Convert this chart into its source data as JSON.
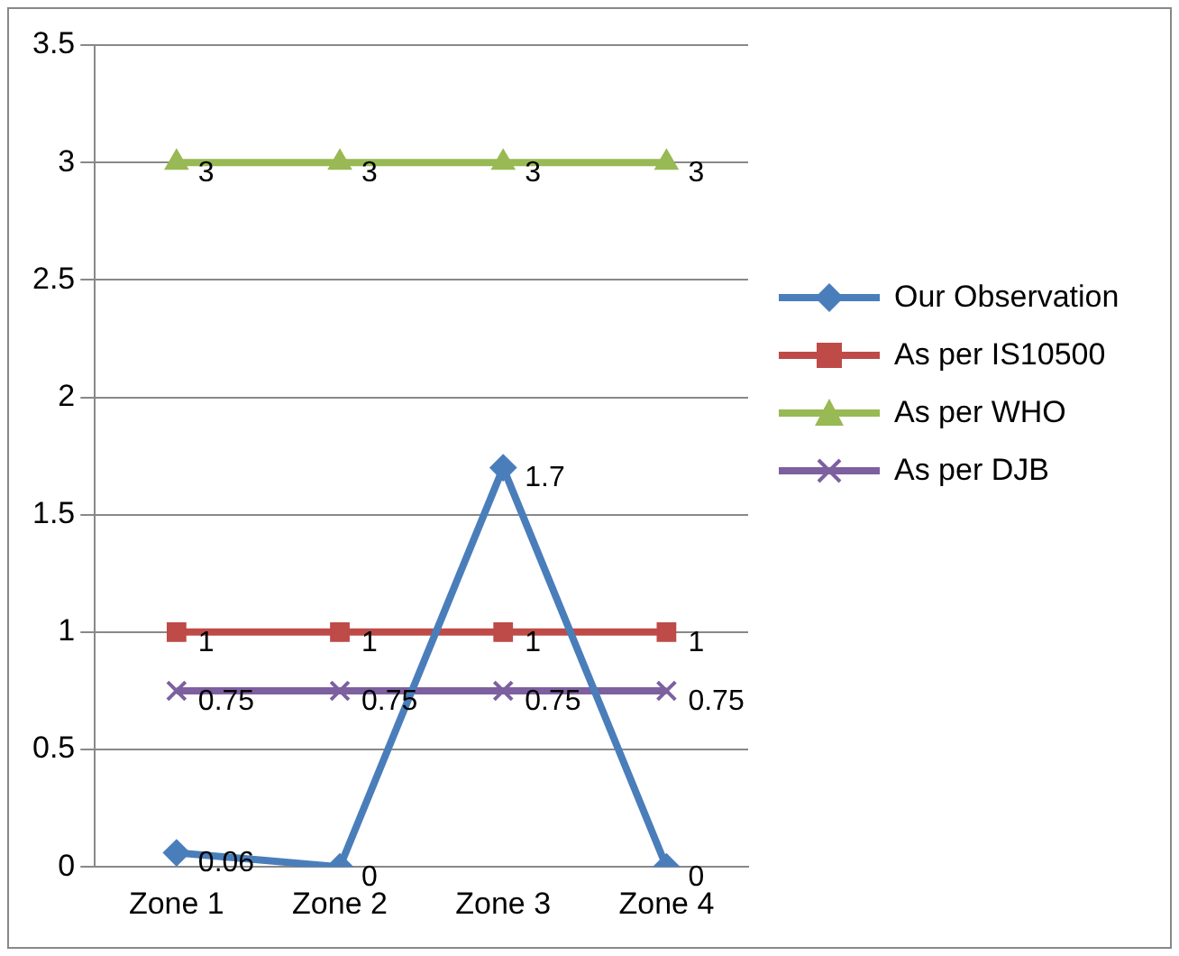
{
  "chart_data": {
    "type": "line",
    "categories": [
      "Zone 1",
      "Zone 2",
      "Zone 3",
      "Zone 4"
    ],
    "series": [
      {
        "name": "Our Observation",
        "color": "#4a7ebb",
        "marker": "diamond",
        "values": [
          0.06,
          0,
          1.7,
          0
        ]
      },
      {
        "name": "As per IS10500",
        "color": "#be4b48",
        "marker": "square",
        "values": [
          1,
          1,
          1,
          1
        ]
      },
      {
        "name": "As per WHO",
        "color": "#98b954",
        "marker": "triangle",
        "values": [
          3,
          3,
          3,
          3
        ]
      },
      {
        "name": "As per DJB",
        "color": "#7d60a0",
        "marker": "cross",
        "values": [
          0.75,
          0.75,
          0.75,
          0.75
        ]
      }
    ],
    "ylim": [
      0,
      3.5
    ],
    "yticks": [
      0,
      0.5,
      1,
      1.5,
      2,
      2.5,
      3,
      3.5
    ],
    "grid": "y",
    "legend": "right",
    "data_labels": true
  }
}
